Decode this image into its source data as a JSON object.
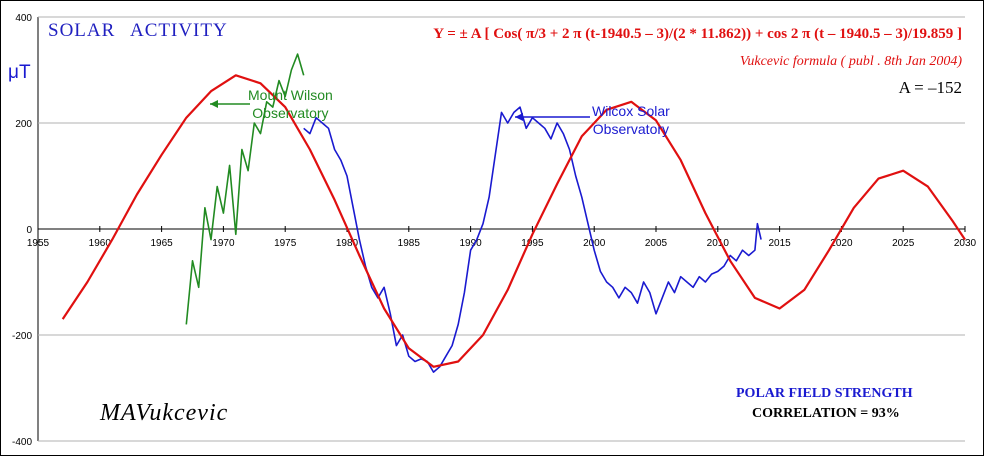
{
  "title": "SOLAR   ACTIVITY",
  "formula": "Y = ± A  [ Cos( π/3 + 2 π (t-1940.5 – 3)/(2 * 11.862)) + cos 2 π (t – 1940.5 – 3)/19.859 ]",
  "formula_note": "Vukcevic formula ( publ .  8th  Jan 2004)",
  "amplitude_label": "A = –152",
  "footer": {
    "polar_label": "POLAR FIELD STRENGTH",
    "correlation_label": "CORRELATION = 93%"
  },
  "signature": "MAVukcevic",
  "annotations": {
    "mount_wilson": [
      "Mount Wilson",
      "Observatory"
    ],
    "wilcox": [
      "Wilcox Solar",
      "Observatory"
    ]
  },
  "chart_data": {
    "type": "line",
    "ylabel": "μT",
    "xlim": [
      1955,
      2030
    ],
    "ylim": [
      -400,
      400
    ],
    "x_ticks": [
      "1955",
      "1960",
      "1965",
      "1970",
      "1975",
      "1980",
      "1985",
      "1990",
      "1995",
      "2000",
      "2005",
      "2010",
      "2015",
      "2020",
      "2025",
      "2030"
    ],
    "y_ticks": [
      "400",
      "200",
      "0",
      "-200",
      "-400"
    ],
    "y_tick_values": [
      400,
      200,
      0,
      -200,
      -400
    ],
    "grid": true,
    "colors": {
      "mount_wilson": "#228b22",
      "wilcox": "#1a1ad0",
      "formula": "#e01010",
      "axis_text": "#000000"
    },
    "series": [
      {
        "key": "mount_wilson",
        "x": [
          1967,
          1967.5,
          1968,
          1968.5,
          1969,
          1969.5,
          1970,
          1970.5,
          1971,
          1971.5,
          1972,
          1972.5,
          1973,
          1973.5,
          1974,
          1974.5,
          1975,
          1975.5,
          1976,
          1976.5
        ],
        "y": [
          -180,
          -60,
          -110,
          40,
          -20,
          80,
          30,
          120,
          -10,
          150,
          110,
          200,
          180,
          240,
          230,
          280,
          250,
          300,
          330,
          290
        ]
      },
      {
        "key": "wilcox",
        "x": [
          1976.5,
          1977,
          1977.5,
          1978,
          1978.5,
          1979,
          1979.5,
          1980,
          1980.5,
          1981,
          1981.5,
          1982,
          1982.5,
          1983,
          1983.5,
          1984,
          1984.5,
          1985,
          1985.5,
          1986,
          1986.5,
          1987,
          1987.5,
          1988,
          1988.5,
          1989,
          1989.5,
          1990,
          1990.5,
          1991,
          1991.5,
          1992,
          1992.5,
          1993,
          1993.5,
          1994,
          1994.5,
          1995,
          1995.5,
          1996,
          1996.5,
          1997,
          1997.5,
          1998,
          1998.5,
          1999,
          1999.5,
          2000,
          2000.5,
          2001,
          2001.5,
          2002,
          2002.5,
          2003,
          2003.5,
          2004,
          2004.5,
          2005,
          2005.5,
          2006,
          2006.5,
          2007,
          2007.5,
          2008,
          2008.5,
          2009,
          2009.5,
          2010,
          2010.5,
          2011,
          2011.5,
          2012,
          2012.5,
          2013,
          2013.2,
          2013.5
        ],
        "y": [
          190,
          180,
          210,
          200,
          190,
          150,
          130,
          100,
          40,
          -20,
          -70,
          -110,
          -130,
          -110,
          -160,
          -220,
          -200,
          -240,
          -250,
          -245,
          -250,
          -270,
          -260,
          -240,
          -220,
          -180,
          -120,
          -40,
          -20,
          10,
          60,
          140,
          220,
          200,
          220,
          230,
          190,
          210,
          200,
          190,
          170,
          200,
          180,
          150,
          100,
          60,
          10,
          -40,
          -80,
          -100,
          -110,
          -130,
          -110,
          -120,
          -140,
          -100,
          -120,
          -160,
          -130,
          -100,
          -120,
          -90,
          -100,
          -110,
          -90,
          -100,
          -85,
          -80,
          -70,
          -50,
          -60,
          -40,
          -50,
          -40,
          10,
          -20
        ]
      },
      {
        "key": "formula",
        "x": [
          1957,
          1959,
          1961,
          1963,
          1965,
          1967,
          1969,
          1971,
          1973,
          1975,
          1977,
          1979,
          1981,
          1983,
          1985,
          1987,
          1989,
          1991,
          1993,
          1995,
          1997,
          1999,
          2001,
          2003,
          2005,
          2007,
          2009,
          2011,
          2013,
          2015,
          2017,
          2019,
          2021,
          2023,
          2025,
          2027,
          2029,
          2030
        ],
        "y": [
          -170,
          -100,
          -20,
          65,
          140,
          210,
          260,
          290,
          275,
          230,
          150,
          55,
          -50,
          -150,
          -225,
          -260,
          -250,
          -200,
          -115,
          -10,
          85,
          175,
          225,
          240,
          205,
          130,
          30,
          -60,
          -130,
          -150,
          -115,
          -40,
          40,
          95,
          110,
          80,
          15,
          -20
        ]
      }
    ]
  }
}
